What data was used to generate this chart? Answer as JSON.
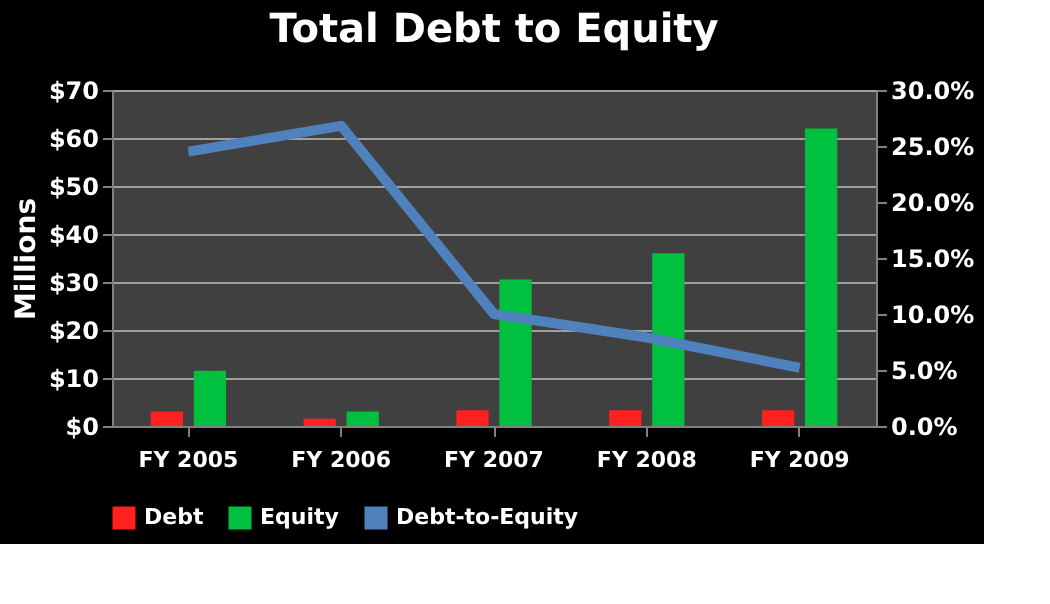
{
  "chart_data": {
    "type": "bar",
    "title": "Total Debt to Equity",
    "ylabel": "Millions",
    "categories": [
      "FY 2005",
      "FY 2006",
      "FY 2007",
      "FY 2008",
      "FY 2009"
    ],
    "series": [
      {
        "name": "Debt",
        "color": "#ff2020",
        "values": [
          3,
          1.5,
          3.3,
          3.3,
          3.3
        ]
      },
      {
        "name": "Equity",
        "color": "#00c040",
        "values": [
          11.5,
          3,
          30.5,
          36,
          62
        ]
      },
      {
        "name": "Debt-to-Equity",
        "type": "line",
        "axis": "y2",
        "color": "#4f81bd",
        "values": [
          24.5,
          26.8,
          10,
          7.9,
          5.2
        ]
      }
    ],
    "ylim": [
      0,
      70
    ],
    "yticks": [
      {
        "value": 0,
        "label": "$0"
      },
      {
        "value": 10,
        "label": "$10"
      },
      {
        "value": 20,
        "label": "$20"
      },
      {
        "value": 30,
        "label": "$30"
      },
      {
        "value": 40,
        "label": "$40"
      },
      {
        "value": 50,
        "label": "$50"
      },
      {
        "value": 60,
        "label": "$60"
      },
      {
        "value": 70,
        "label": "$70"
      }
    ],
    "y2lim": [
      0,
      30
    ],
    "y2ticks": [
      {
        "value": 0,
        "label": "0.0%"
      },
      {
        "value": 5,
        "label": "5.0%"
      },
      {
        "value": 10,
        "label": "10.0%"
      },
      {
        "value": 15,
        "label": "15.0%"
      },
      {
        "value": 20,
        "label": "20.0%"
      },
      {
        "value": 25,
        "label": "25.0%"
      },
      {
        "value": 30,
        "label": "30.0%"
      }
    ],
    "grid": "y",
    "legend": "bottom"
  }
}
